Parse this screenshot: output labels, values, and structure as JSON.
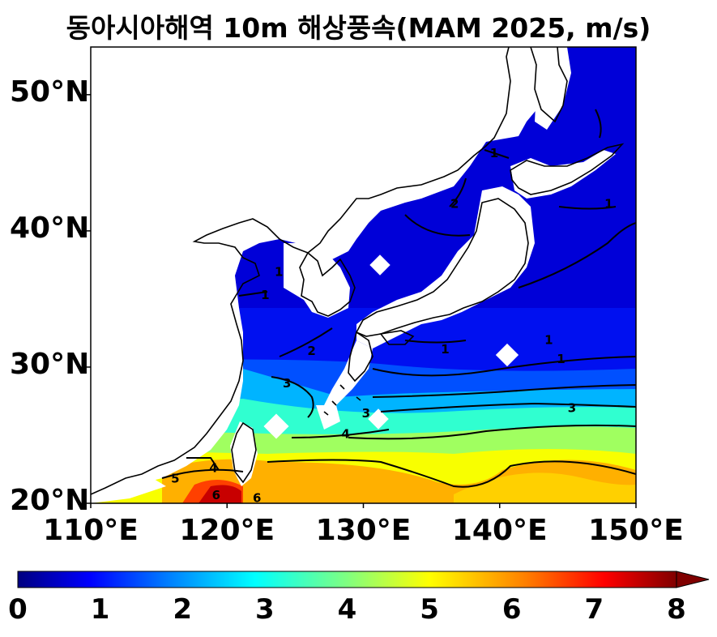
{
  "title": "동아시아해역 10m 해상풍속(MAM 2025, m/s)",
  "map": {
    "extent": {
      "lon": [
        110,
        150
      ],
      "lat": [
        20,
        53.5
      ]
    },
    "lat_ticks": [
      {
        "value": 20,
        "label": "20°N"
      },
      {
        "value": 30,
        "label": "30°N"
      },
      {
        "value": 40,
        "label": "40°N"
      },
      {
        "value": 50,
        "label": "50°N"
      }
    ],
    "lon_ticks": [
      {
        "value": 110,
        "label": "110°E"
      },
      {
        "value": 120,
        "label": "120°E"
      },
      {
        "value": 130,
        "label": "130°E"
      },
      {
        "value": 140,
        "label": "140°E"
      },
      {
        "value": 150,
        "label": "150°E"
      }
    ],
    "contour_labels": [
      {
        "text": "1",
        "lon": 122.8,
        "lat": 35.3
      },
      {
        "text": "1",
        "lon": 123.8,
        "lat": 37.0
      },
      {
        "text": "2",
        "lon": 126.2,
        "lat": 31.2
      },
      {
        "text": "3",
        "lon": 124.4,
        "lat": 28.8
      },
      {
        "text": "3",
        "lon": 130.2,
        "lat": 26.6
      },
      {
        "text": "4",
        "lon": 128.7,
        "lat": 25.1
      },
      {
        "text": "4",
        "lon": 119.0,
        "lat": 22.6
      },
      {
        "text": "5",
        "lon": 116.2,
        "lat": 21.8
      },
      {
        "text": "6",
        "lon": 119.2,
        "lat": 20.6
      },
      {
        "text": "6",
        "lon": 122.2,
        "lat": 20.4
      },
      {
        "text": "1",
        "lon": 136.0,
        "lat": 31.3
      },
      {
        "text": "1",
        "lon": 143.6,
        "lat": 32.0
      },
      {
        "text": "1",
        "lon": 144.5,
        "lat": 30.6
      },
      {
        "text": "3",
        "lon": 145.3,
        "lat": 27.0
      },
      {
        "text": "2",
        "lon": 136.7,
        "lat": 42.0
      },
      {
        "text": "1",
        "lon": 139.6,
        "lat": 45.7
      },
      {
        "text": "1",
        "lon": 148.0,
        "lat": 42.0
      }
    ],
    "colors": {
      "land": "#ffffff",
      "coast": "#000000",
      "contour": "#000000"
    }
  },
  "colorbar": {
    "min": 0,
    "max": 8,
    "extend": "max",
    "ticks": [
      "0",
      "1",
      "2",
      "3",
      "4",
      "5",
      "6",
      "7",
      "8"
    ],
    "colormap": [
      "#000080",
      "#0000ff",
      "#0080ff",
      "#00ffff",
      "#80ff80",
      "#ffff00",
      "#ff8000",
      "#ff0000",
      "#800000"
    ]
  }
}
